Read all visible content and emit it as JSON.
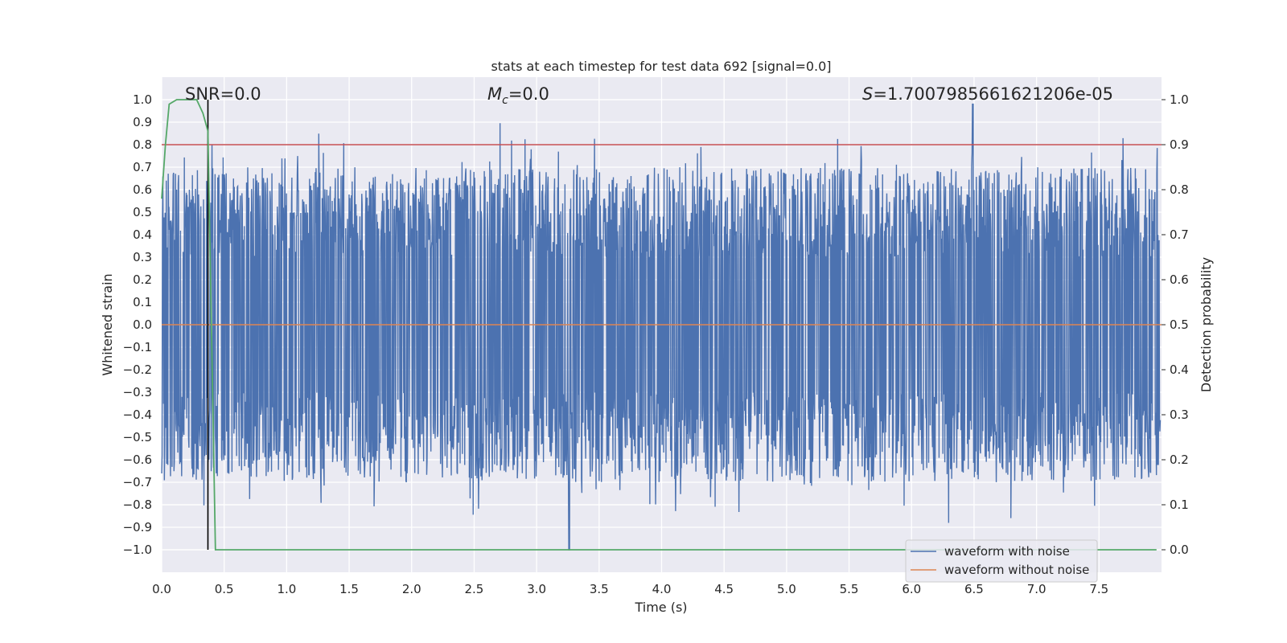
{
  "chart_data": {
    "type": "line",
    "title": "stats at each timestep for test data 692 [signal=0.0]",
    "xlabel": "Time (s)",
    "ylabel_left": "Whitened strain",
    "ylabel_right": "Detection probability",
    "xlim": [
      0.0,
      8.0
    ],
    "ylim_left": [
      -1.1,
      1.1
    ],
    "ylim_right": [
      -0.05,
      1.05
    ],
    "x_ticks": [
      "0.0",
      "0.5",
      "1.0",
      "1.5",
      "2.0",
      "2.5",
      "3.0",
      "3.5",
      "4.0",
      "4.5",
      "5.0",
      "5.5",
      "6.0",
      "6.5",
      "7.0",
      "7.5"
    ],
    "x_tick_values": [
      0.0,
      0.5,
      1.0,
      1.5,
      2.0,
      2.5,
      3.0,
      3.5,
      4.0,
      4.5,
      5.0,
      5.5,
      6.0,
      6.5,
      7.0,
      7.5
    ],
    "y_left_ticks": [
      "1.0",
      "0.9",
      "0.8",
      "0.7",
      "0.6",
      "0.5",
      "0.4",
      "0.3",
      "0.2",
      "0.1",
      "0.0",
      "−0.1",
      "−0.2",
      "−0.3",
      "−0.4",
      "−0.5",
      "−0.6",
      "−0.7",
      "−0.8",
      "−0.9",
      "−1.0"
    ],
    "y_left_tick_values": [
      1.0,
      0.9,
      0.8,
      0.7,
      0.6,
      0.5,
      0.4,
      0.3,
      0.2,
      0.1,
      0.0,
      -0.1,
      -0.2,
      -0.3,
      -0.4,
      -0.5,
      -0.6,
      -0.7,
      -0.8,
      -0.9,
      -1.0
    ],
    "y_right_ticks": [
      "1.0",
      "0.9",
      "0.8",
      "0.7",
      "0.6",
      "0.5",
      "0.4",
      "0.3",
      "0.2",
      "0.1",
      "0.0"
    ],
    "y_right_tick_values": [
      1.0,
      0.9,
      0.8,
      0.7,
      0.6,
      0.5,
      0.4,
      0.3,
      0.2,
      0.1,
      0.0
    ],
    "grid": true,
    "legend_position": "bottom-right",
    "annotations": {
      "snr": "SNR=0.0",
      "mc_symbol": "M",
      "mc_subscript": "c",
      "mc_value": "=0.0",
      "s_symbol": "S",
      "s_value": "=1.7007985661621206e-05"
    },
    "series": [
      {
        "name": "waveform with noise",
        "color": "#4c72b0",
        "axis": "left",
        "description_envelope": {
          "upper_typical_range": [
            0.3,
            0.7
          ],
          "lower_typical_range": [
            -0.7,
            -0.3
          ],
          "peak_max": 0.98,
          "peak_max_x": 6.49,
          "peak_min": -1.0,
          "peak_min_x": 3.26
        }
      },
      {
        "name": "waveform without noise",
        "color": "#dd8452",
        "axis": "left",
        "x": [
          0.0,
          8.0
        ],
        "y": [
          0.0,
          0.0
        ]
      },
      {
        "name": "",
        "color": "#55a868",
        "axis": "right",
        "x": [
          0.0,
          0.03,
          0.06,
          0.12,
          0.2,
          0.28,
          0.33,
          0.37,
          0.43,
          0.5,
          1.0,
          2.0,
          3.0,
          4.0,
          5.0,
          6.0,
          7.0,
          7.96
        ],
        "y": [
          0.78,
          0.9,
          0.99,
          1.0,
          1.0,
          1.0,
          0.97,
          0.93,
          0.0,
          0.0,
          0.0,
          0.0,
          0.0,
          0.0,
          0.0,
          0.0,
          0.0,
          0.0
        ]
      }
    ],
    "reference_lines": [
      {
        "kind": "horizontal",
        "axis": "right",
        "value": 0.9,
        "color": "#c44e52"
      },
      {
        "kind": "vertical",
        "x": 0.37,
        "ymin": -1.0,
        "ymax": 1.0,
        "color": "#000000"
      }
    ]
  }
}
